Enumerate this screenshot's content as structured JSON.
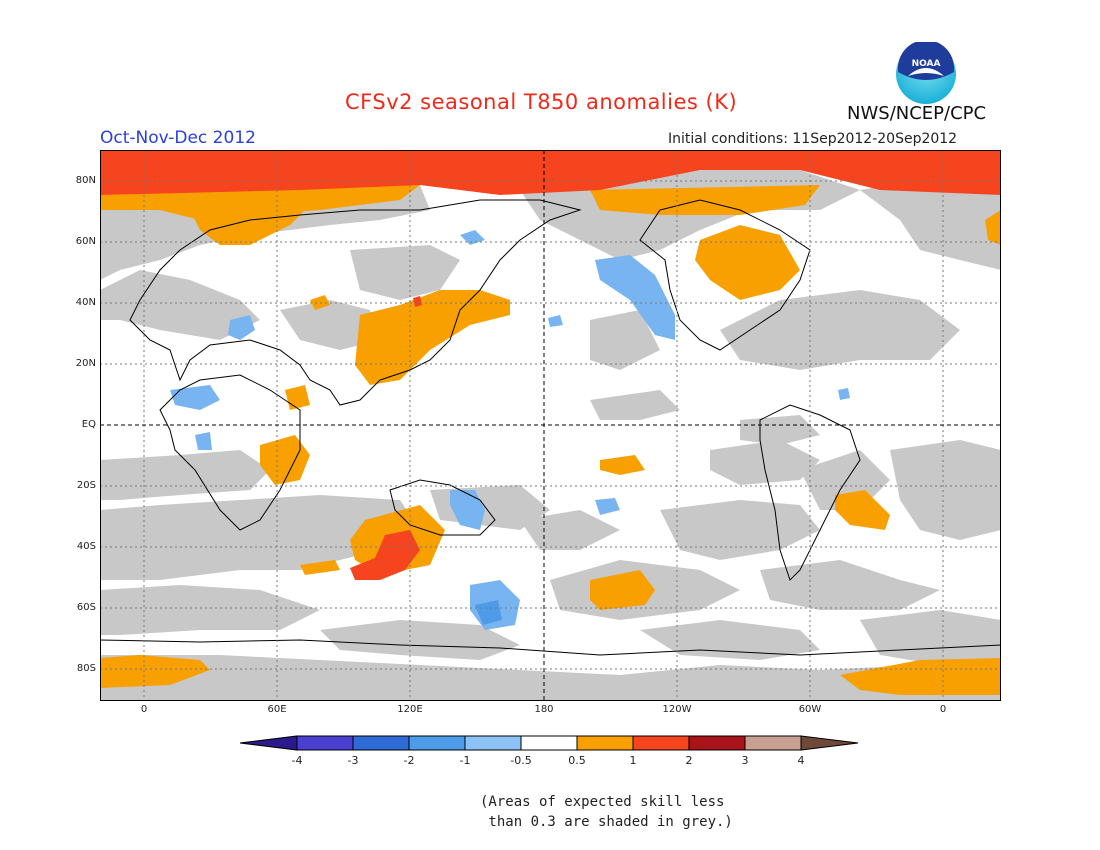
{
  "title": "CFSv2 seasonal T850 anomalies (K)",
  "agency": "NWS/NCEP/CPC",
  "logo_text": "NOAA",
  "season": "Oct-Nov-Dec 2012",
  "initial_conditions": "Initial conditions: 11Sep2012-20Sep2012",
  "map": {
    "y_labels": [
      "80N",
      "60N",
      "40N",
      "20N",
      "EQ",
      "20S",
      "40S",
      "60S",
      "80S"
    ],
    "x_labels": [
      "0",
      "60E",
      "120E",
      "180",
      "120W",
      "60W",
      "0"
    ]
  },
  "colorbar": {
    "colors": [
      "#2a1a8c",
      "#4a3fd0",
      "#2f6bd6",
      "#4e9be9",
      "#8cc2f5",
      "#ffffff",
      "#f8a000",
      "#f5441e",
      "#a8141a",
      "#c8a090",
      "#6e4838"
    ],
    "labels": [
      "-4",
      "-3",
      "-2",
      "-1",
      "-0.5",
      "0.5",
      "1",
      "2",
      "3",
      "4"
    ]
  },
  "colors": {
    "low_skill": "#c8c8c8",
    "orange": "#f8a000",
    "red_orange": "#f5441e",
    "blue": "#78b4f0",
    "title_red": "#ee2a1a",
    "season_blue": "#2a3fd9"
  },
  "note": "(Areas of expected skill less\n than 0.3 are shaded in grey.)"
}
